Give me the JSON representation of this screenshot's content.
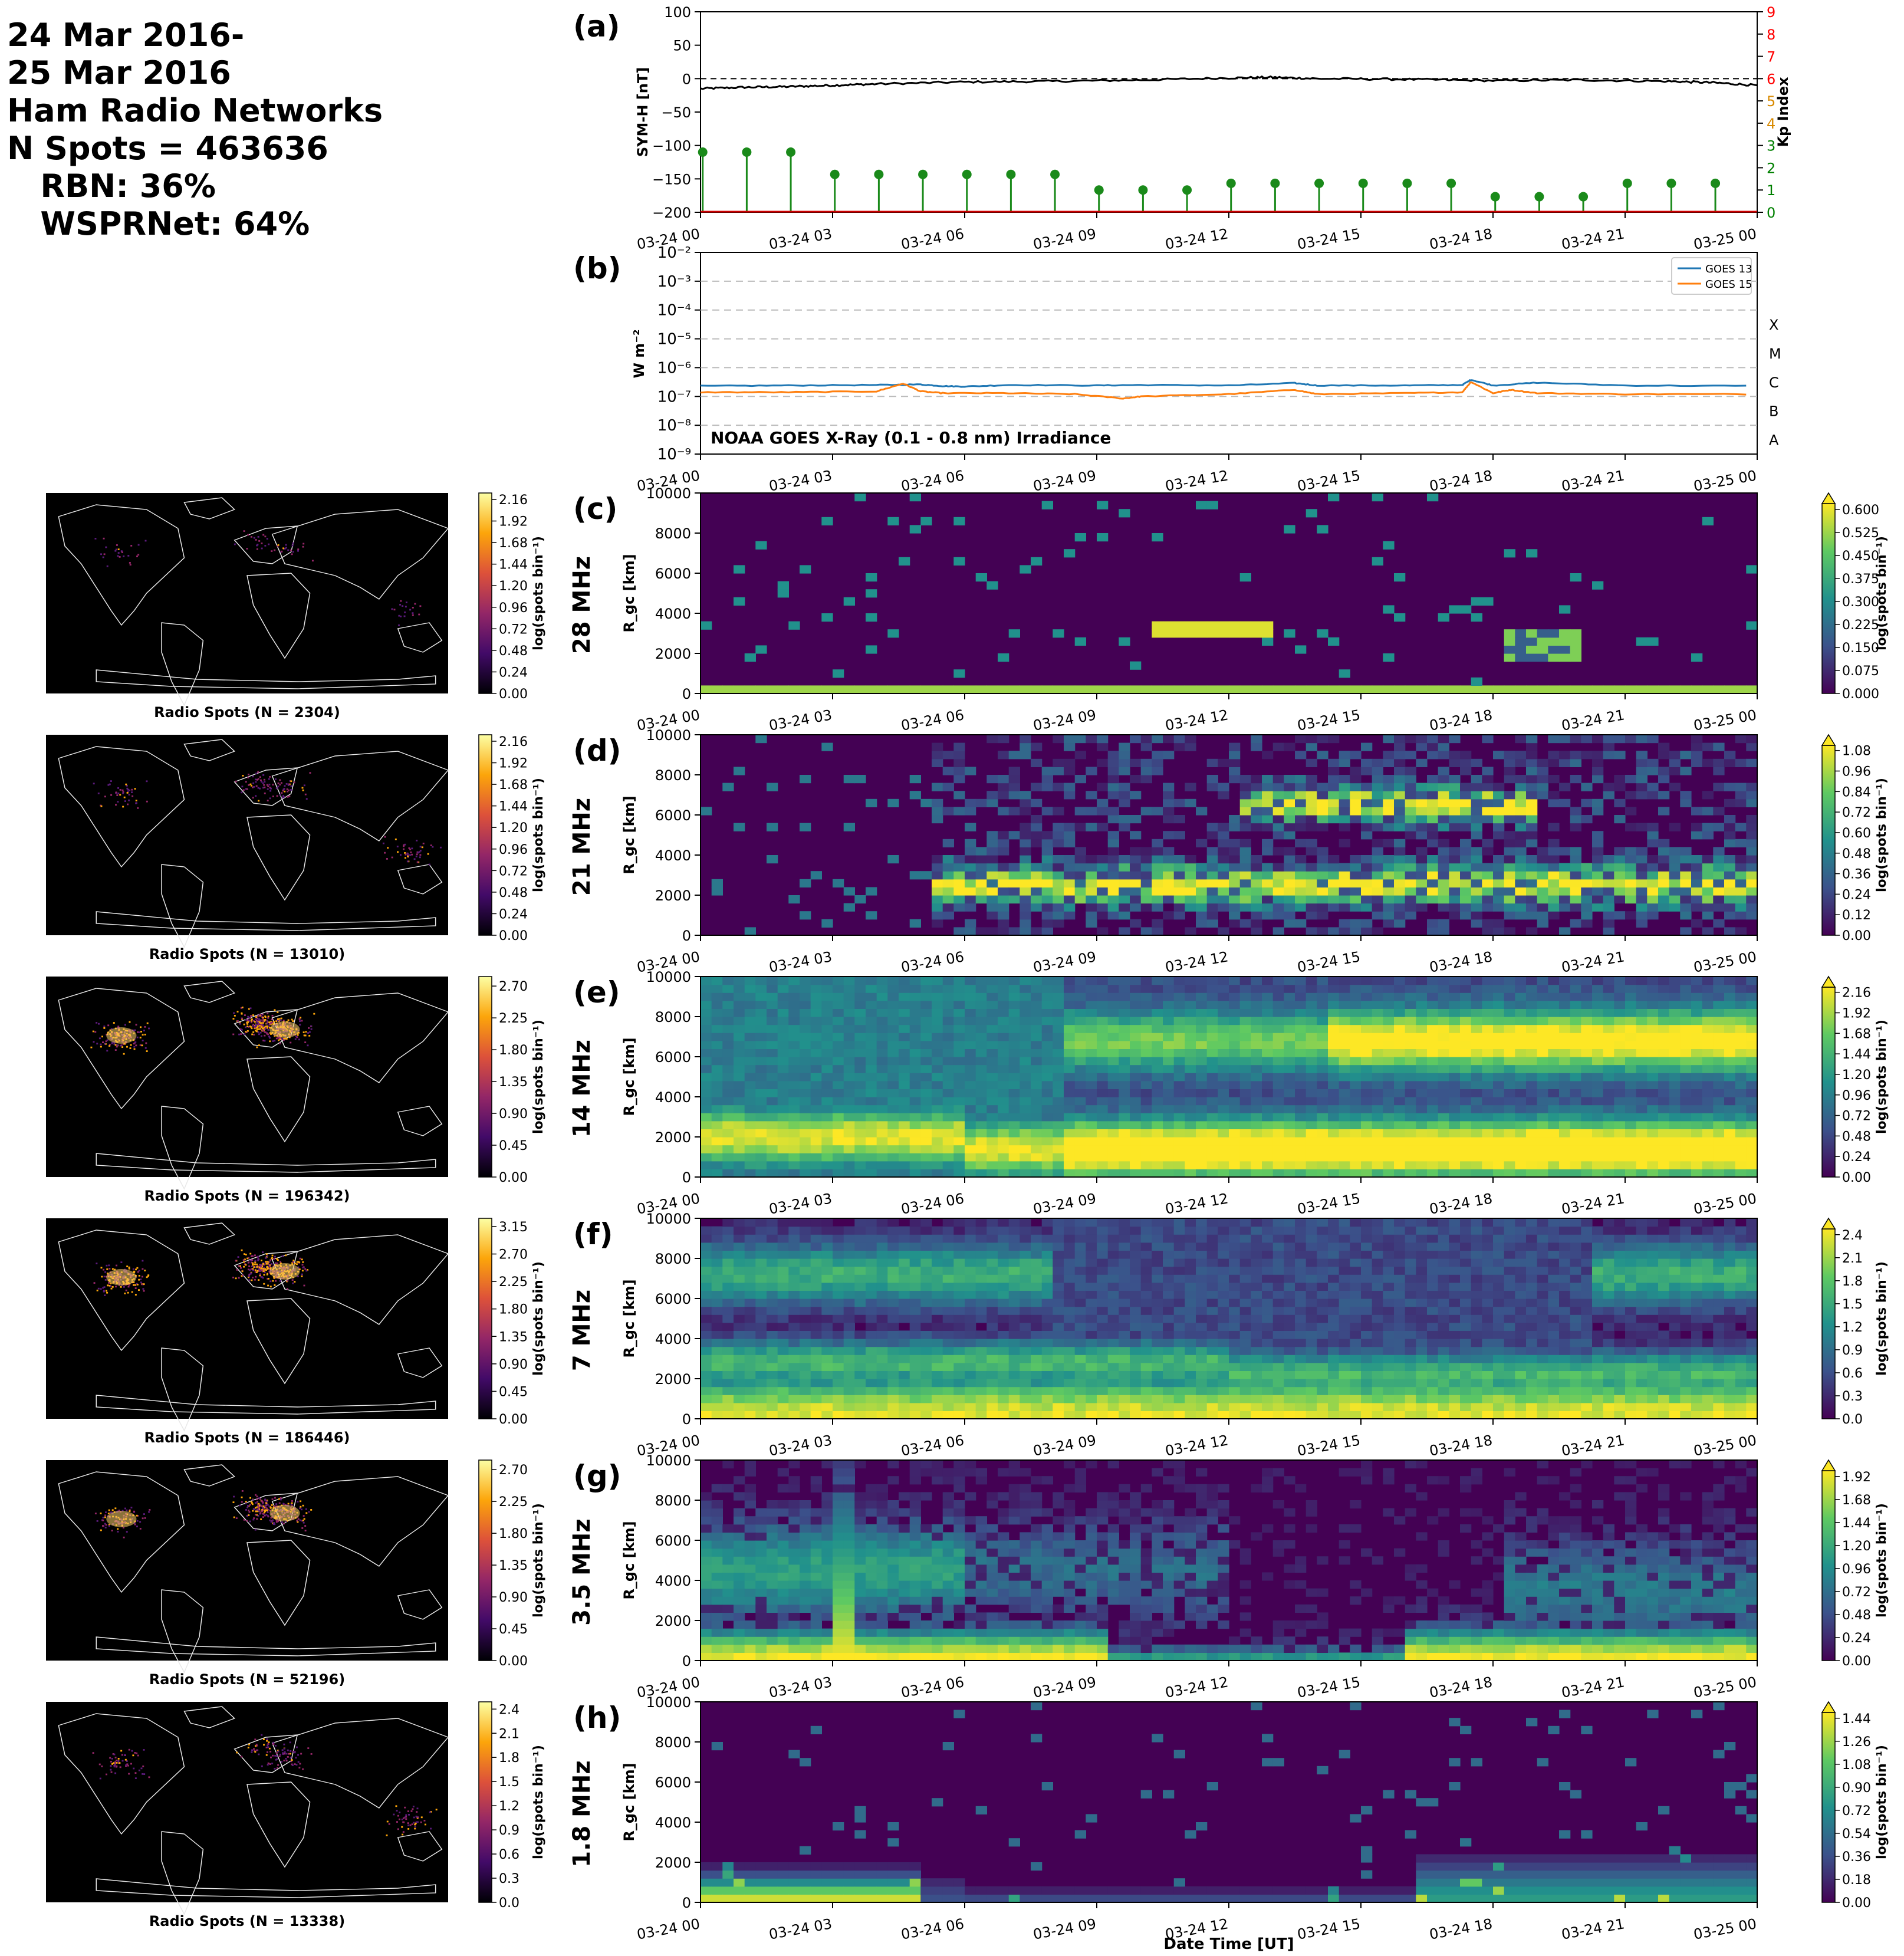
{
  "header": {
    "lines": [
      "24 Mar 2016-",
      "25 Mar 2016",
      "Ham Radio Networks",
      "N Spots = 463636",
      "   RBN: 36%",
      "   WSPRNet: 64%"
    ]
  },
  "time_ticks": [
    "03-24 00",
    "03-24 03",
    "03-24 06",
    "03-24 09",
    "03-24 12",
    "03-24 15",
    "03-24 18",
    "03-24 21",
    "03-25 00"
  ],
  "xlabel": "Date Time [UT]",
  "colors": {
    "kp_stem": "#1a8a1a",
    "symh": "#000000",
    "goes13": "#1f77b4",
    "goes15": "#ff7f0e",
    "viridis": [
      "#440154",
      "#3b528b",
      "#21918c",
      "#5ec962",
      "#fde725"
    ],
    "inferno": [
      "#000004",
      "#420a68",
      "#932667",
      "#dd513a",
      "#fca50a",
      "#fcffa4"
    ]
  },
  "chart_data": [
    {
      "id": "a",
      "panel_label": "(a)",
      "type": "line",
      "ylabel": "SYM-H [nT]",
      "ylabel_right": "Kp Index",
      "ylim": [
        -200,
        100
      ],
      "yticks": [
        100,
        50,
        0,
        -50,
        -100,
        -150,
        -200
      ],
      "ylim_right": [
        0,
        9
      ],
      "yticks_right": [
        9,
        8,
        7,
        6,
        5,
        4,
        3,
        2,
        1,
        0
      ],
      "right_tick_colors": [
        "red",
        "red",
        "red",
        "red",
        "#d98a00",
        "#d98a00",
        "green",
        "green",
        "green",
        "green"
      ],
      "symh": {
        "x_hours": [
          0,
          1,
          2,
          3,
          4,
          6,
          8,
          10,
          12,
          13,
          14,
          16,
          18,
          20,
          22,
          23,
          24
        ],
        "values": [
          -15,
          -13,
          -12,
          -10,
          -8,
          -5,
          -4,
          -2,
          1,
          2,
          0,
          -1,
          -3,
          -2,
          -4,
          -6,
          -10
        ]
      },
      "kp": {
        "x_hours": [
          0,
          1,
          2,
          3,
          4,
          5,
          6,
          7,
          8,
          9,
          10,
          11,
          12,
          13,
          14,
          15,
          16,
          17,
          18,
          19,
          20,
          21,
          22,
          23
        ],
        "values": [
          2.7,
          2.7,
          2.7,
          1.7,
          1.7,
          1.7,
          1.7,
          1.7,
          1.7,
          1.0,
          1.0,
          1.0,
          1.3,
          1.3,
          1.3,
          1.3,
          1.3,
          1.3,
          0.7,
          0.7,
          0.7,
          1.3,
          1.3,
          1.3
        ]
      }
    },
    {
      "id": "b",
      "panel_label": "(b)",
      "type": "line",
      "ylabel": "W m⁻²",
      "log_scale": true,
      "ylim_exp": [
        -9,
        -2
      ],
      "ytick_labels": [
        "10⁻²",
        "10⁻³",
        "10⁻⁴",
        "10⁻⁵",
        "10⁻⁶",
        "10⁻⁷",
        "10⁻⁸",
        "10⁻⁹"
      ],
      "flare_classes": [
        "X",
        "M",
        "C",
        "B",
        "A"
      ],
      "annotation": "NOAA GOES X-Ray (0.1 - 0.8 nm) Irradiance",
      "series": [
        {
          "name": "GOES 13",
          "x_hours": [
            0,
            2,
            4,
            5,
            5.5,
            6,
            7,
            9,
            10,
            12,
            13.5,
            14,
            16,
            17.3,
            17.5,
            18,
            19,
            21,
            24
          ],
          "values": [
            2.3e-07,
            2.4e-07,
            2.5e-07,
            2.6e-07,
            2.3e-07,
            2.2e-07,
            2.5e-07,
            2.4e-07,
            2.5e-07,
            2.4e-07,
            2.9e-07,
            2.4e-07,
            2.4e-07,
            2.5e-07,
            3.8e-07,
            2.4e-07,
            3e-07,
            2.4e-07,
            2.3e-07
          ]
        },
        {
          "name": "GOES 15",
          "x_hours": [
            0,
            2,
            4,
            4.6,
            5,
            5.5,
            7,
            8.5,
            9.6,
            10,
            12,
            13.5,
            14,
            16,
            17.3,
            17.5,
            18,
            18.4,
            19,
            21,
            24
          ],
          "values": [
            1.4e-07,
            1.4e-07,
            1.5e-07,
            2.8e-07,
            1.5e-07,
            1.3e-07,
            1.3e-07,
            1.2e-07,
            8.5e-08,
            1e-07,
            1.2e-07,
            1.7e-07,
            1.2e-07,
            1.3e-07,
            1.4e-07,
            3.2e-07,
            1.3e-07,
            1.7e-07,
            1.3e-07,
            1.2e-07,
            1.2e-07
          ]
        }
      ]
    }
  ],
  "bands": [
    {
      "id": "c",
      "panel_label": "(c)",
      "band": "28 MHz",
      "n_label": "Radio Spots (N = 2304)",
      "map_ticks": [
        "2.16",
        "1.92",
        "1.68",
        "1.44",
        "1.20",
        "0.96",
        "0.72",
        "0.48",
        "0.24",
        "0.00"
      ],
      "rti_ticks": [
        "0.600",
        "0.525",
        "0.450",
        "0.375",
        "0.300",
        "0.225",
        "0.150",
        "0.075",
        "0.000"
      ],
      "intensity": 0.05
    },
    {
      "id": "d",
      "panel_label": "(d)",
      "band": "21 MHz",
      "n_label": "Radio Spots (N = 13010)",
      "map_ticks": [
        "2.16",
        "1.92",
        "1.68",
        "1.44",
        "1.20",
        "0.96",
        "0.72",
        "0.48",
        "0.24",
        "0.00"
      ],
      "rti_ticks": [
        "1.08",
        "0.96",
        "0.84",
        "0.72",
        "0.60",
        "0.48",
        "0.36",
        "0.24",
        "0.12",
        "0.00"
      ],
      "intensity": 0.25
    },
    {
      "id": "e",
      "panel_label": "(e)",
      "band": "14 MHz",
      "n_label": "Radio Spots (N = 196342)",
      "map_ticks": [
        "2.70",
        "2.25",
        "1.80",
        "1.35",
        "0.90",
        "0.45",
        "0.00"
      ],
      "rti_ticks": [
        "2.16",
        "1.92",
        "1.68",
        "1.44",
        "1.20",
        "0.96",
        "0.72",
        "0.48",
        "0.24",
        "0.00"
      ],
      "intensity": 0.95
    },
    {
      "id": "f",
      "panel_label": "(f)",
      "band": "7 MHz",
      "n_label": "Radio Spots (N = 186446)",
      "map_ticks": [
        "3.15",
        "2.70",
        "2.25",
        "1.80",
        "1.35",
        "0.90",
        "0.45",
        "0.00"
      ],
      "rti_ticks": [
        "2.4",
        "2.1",
        "1.8",
        "1.5",
        "1.2",
        "0.9",
        "0.6",
        "0.3",
        "0.0"
      ],
      "intensity": 0.9
    },
    {
      "id": "g",
      "panel_label": "(g)",
      "band": "3.5 MHz",
      "n_label": "Radio Spots (N = 52196)",
      "map_ticks": [
        "2.70",
        "2.25",
        "1.80",
        "1.35",
        "0.90",
        "0.45",
        "0.00"
      ],
      "rti_ticks": [
        "1.92",
        "1.68",
        "1.44",
        "1.20",
        "0.96",
        "0.72",
        "0.48",
        "0.24",
        "0.00"
      ],
      "intensity": 0.6
    },
    {
      "id": "h",
      "panel_label": "(h)",
      "band": "1.8 MHz",
      "n_label": "Radio Spots (N = 13338)",
      "map_ticks": [
        "2.4",
        "2.1",
        "1.8",
        "1.5",
        "1.2",
        "0.9",
        "0.6",
        "0.3",
        "0.0"
      ],
      "rti_ticks": [
        "1.44",
        "1.26",
        "1.08",
        "0.90",
        "0.72",
        "0.54",
        "0.36",
        "0.18",
        "0.00"
      ],
      "intensity": 0.3
    }
  ],
  "rti_common": {
    "ylabel": "R_gc [km]",
    "yticks": [
      "10000",
      "8000",
      "6000",
      "4000",
      "2000",
      "0"
    ],
    "cbar_label": "log(spots bin⁻¹)"
  }
}
